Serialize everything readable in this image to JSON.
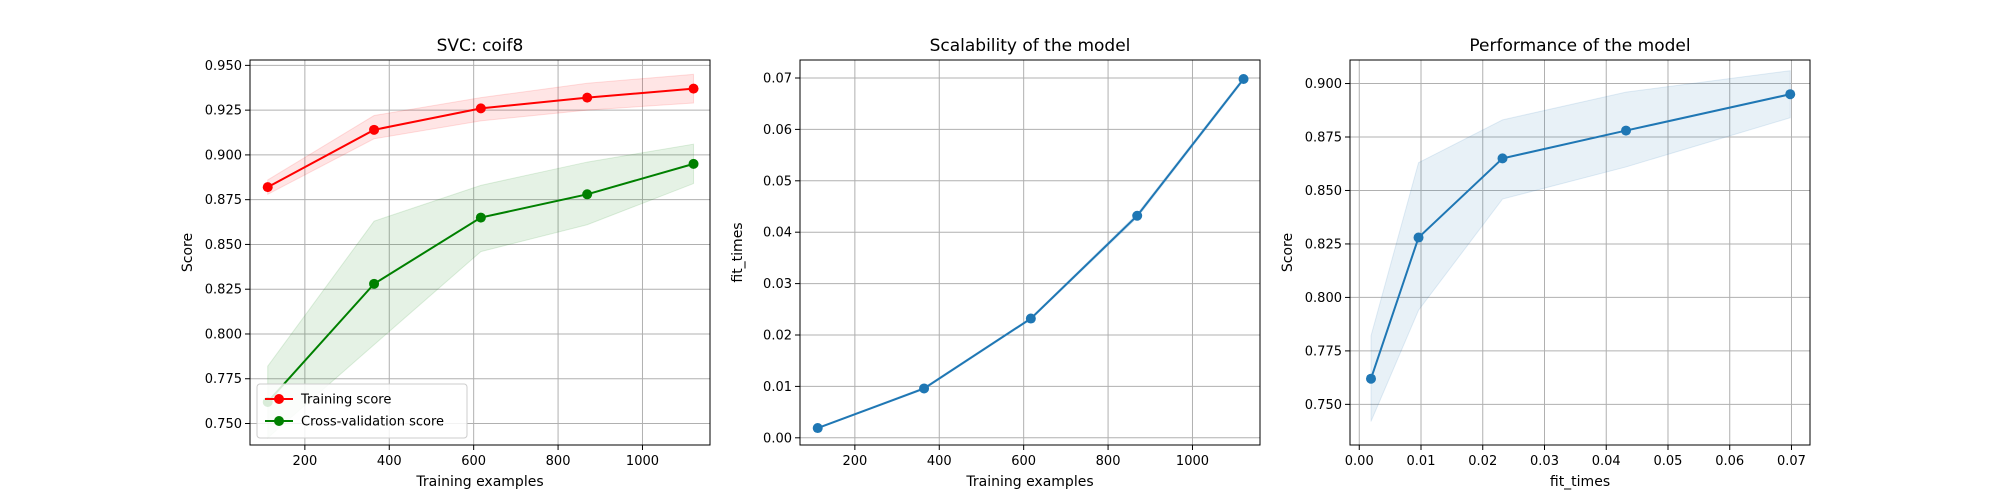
{
  "chart_data": [
    {
      "type": "line",
      "title": "SVC: coif8",
      "xlabel": "Training examples",
      "ylabel": "Score",
      "xlim": [
        70,
        1160
      ],
      "ylim": [
        0.738,
        0.953
      ],
      "xticks": [
        200,
        400,
        600,
        800,
        1000
      ],
      "yticks": [
        0.75,
        0.775,
        0.8,
        0.825,
        0.85,
        0.875,
        0.9,
        0.925,
        0.95
      ],
      "ytick_labels": [
        "0.750",
        "0.775",
        "0.800",
        "0.825",
        "0.850",
        "0.875",
        "0.900",
        "0.925",
        "0.950"
      ],
      "grid": true,
      "legend": "lower-left",
      "x": [
        112,
        364,
        617,
        869,
        1121
      ],
      "series": [
        {
          "name": "Training score",
          "color": "#ff0000",
          "values": [
            0.882,
            0.914,
            0.926,
            0.932,
            0.937
          ],
          "band_low": [
            0.878,
            0.909,
            0.919,
            0.925,
            0.929
          ],
          "band_high": [
            0.886,
            0.922,
            0.932,
            0.94,
            0.945
          ]
        },
        {
          "name": "Cross-validation score",
          "color": "#008000",
          "values": [
            0.762,
            0.828,
            0.865,
            0.878,
            0.895
          ],
          "band_low": [
            0.742,
            0.794,
            0.846,
            0.861,
            0.884
          ],
          "band_high": [
            0.782,
            0.863,
            0.883,
            0.896,
            0.906
          ]
        }
      ]
    },
    {
      "type": "line",
      "title": "Scalability of the model",
      "xlabel": "Training examples",
      "ylabel": "fit_times",
      "xlim": [
        70,
        1160
      ],
      "ylim": [
        -0.0014,
        0.0735
      ],
      "xticks": [
        200,
        400,
        600,
        800,
        1000
      ],
      "yticks": [
        0.0,
        0.01,
        0.02,
        0.03,
        0.04,
        0.05,
        0.06,
        0.07
      ],
      "ytick_labels": [
        "0.00",
        "0.01",
        "0.02",
        "0.03",
        "0.04",
        "0.05",
        "0.06",
        "0.07"
      ],
      "grid": true,
      "x": [
        112,
        364,
        617,
        869,
        1121
      ],
      "series": [
        {
          "color": "#1f77b4",
          "values": [
            0.0019,
            0.0096,
            0.0232,
            0.0432,
            0.0698
          ],
          "band_low": [
            0.0018,
            0.0094,
            0.023,
            0.0428,
            0.0695
          ],
          "band_high": [
            0.002,
            0.0098,
            0.0234,
            0.0436,
            0.0701
          ]
        }
      ]
    },
    {
      "type": "line",
      "title": "Performance of the model",
      "xlabel": "fit_times",
      "ylabel": "Score",
      "xlim": [
        -0.0015,
        0.073
      ],
      "ylim": [
        0.731,
        0.911
      ],
      "xticks": [
        0.0,
        0.01,
        0.02,
        0.03,
        0.04,
        0.05,
        0.06,
        0.07
      ],
      "xtick_labels": [
        "0.00",
        "0.01",
        "0.02",
        "0.03",
        "0.04",
        "0.05",
        "0.06",
        "0.07"
      ],
      "yticks": [
        0.75,
        0.775,
        0.8,
        0.825,
        0.85,
        0.875,
        0.9
      ],
      "ytick_labels": [
        "0.750",
        "0.775",
        "0.800",
        "0.825",
        "0.850",
        "0.875",
        "0.900"
      ],
      "grid": true,
      "x": [
        0.0019,
        0.0096,
        0.0232,
        0.0432,
        0.0698
      ],
      "series": [
        {
          "color": "#1f77b4",
          "values": [
            0.762,
            0.828,
            0.865,
            0.878,
            0.895
          ],
          "band_low": [
            0.742,
            0.794,
            0.846,
            0.861,
            0.884
          ],
          "band_high": [
            0.782,
            0.863,
            0.883,
            0.896,
            0.906
          ]
        }
      ]
    }
  ]
}
